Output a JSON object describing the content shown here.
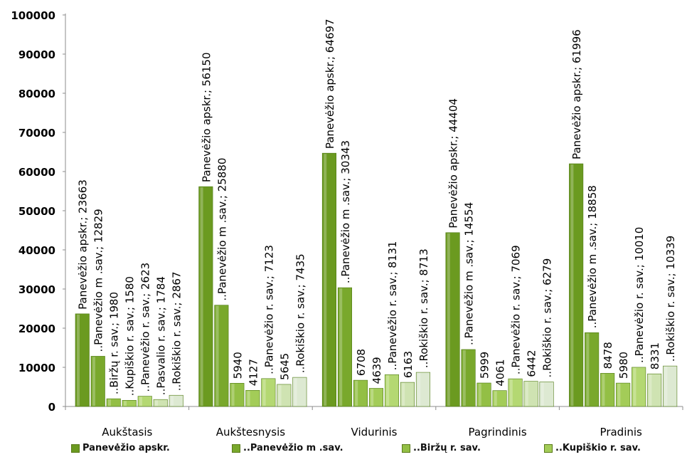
{
  "chart_data": {
    "type": "bar",
    "categories": [
      "Aukštasis",
      "Aukštesnysis",
      "Vidurinis",
      "Pagrindinis",
      "Pradinis"
    ],
    "ylim": [
      0,
      100000
    ],
    "yticks": [
      "0",
      "10000",
      "20000",
      "30000",
      "40000",
      "50000",
      "60000",
      "70000",
      "80000",
      "90000",
      "100000"
    ],
    "grid": false,
    "legend_position": "bottom",
    "series": [
      {
        "name": "Panevėžio apskr.",
        "color": "#6b9a20",
        "values": [
          23663,
          56150,
          64697,
          44404,
          61996
        ]
      },
      {
        "name": "..Panevėžio m .sav.",
        "color": "#79a82c",
        "values": [
          12829,
          25880,
          30343,
          14554,
          18858
        ]
      },
      {
        "name": "..Biržų r. sav.",
        "color": "#93bf45",
        "values": [
          1980,
          5940,
          6708,
          5999,
          8478
        ]
      },
      {
        "name": "..Kupiškio r. sav.",
        "color": "#a3cc58",
        "values": [
          1580,
          4127,
          4639,
          4061,
          5980
        ]
      },
      {
        "name": "..Panevėžio r. sav.",
        "color": "#b4d872",
        "values": [
          2623,
          7123,
          8131,
          7069,
          10010
        ]
      },
      {
        "name": "..Pasvalio r. sav.",
        "color": "#cfe3b2",
        "values": [
          1784,
          5645,
          6163,
          6442,
          8331
        ]
      },
      {
        "name": "..Rokiškio r. sav.",
        "color": "#dde9d2",
        "values": [
          2867,
          7435,
          8713,
          6279,
          10339
        ]
      }
    ],
    "data_labels": [
      [
        "Panevėžio apskr.; 23663",
        "..Panevėžio m .sav.; 12829",
        "..Biržų r. sav.; 1980",
        "..Kupiškio r. sav.; 1580",
        "..Panevėžio r. sav.; 2623",
        "..Pasvalio r. sav.; 1784",
        "..Rokiškio r. sav.; 2867"
      ],
      [
        "Panevėžio apskr.; 56150",
        "..Panevėžio m .sav.; 25880",
        "5940",
        "4127",
        "..Panevėžio r. sav.; 7123",
        "5645",
        "..Rokiškio r. sav.; 7435"
      ],
      [
        "Panevėžio apskr.; 64697",
        "..Panevėžio m .sav.; 30343",
        "6708",
        "4639",
        "..Panevėžio r. sav.; 8131",
        "6163",
        "..Rokiškio r. sav.; 8713"
      ],
      [
        "Panevėžio apskr.; 44404",
        "..Panevėžio m .sav.; 14554",
        "5999",
        "4061",
        "..Panevėžio r. sav.; 7069",
        "6442",
        "..Rokiškio r. sav.; 6279"
      ],
      [
        "Panevėžio apskr.; 61996",
        "..Panevėžio m .sav.; 18858",
        "8478",
        "5980",
        "..Panevėžio r. sav.; 10010",
        "8331",
        "..Rokiškio r. sav.; 10339"
      ]
    ],
    "legend_entries": [
      "Panevėžio apskr.",
      "..Panevėžio m .sav.",
      "..Biržų r. sav.",
      "..Kupiškio r. sav."
    ]
  }
}
